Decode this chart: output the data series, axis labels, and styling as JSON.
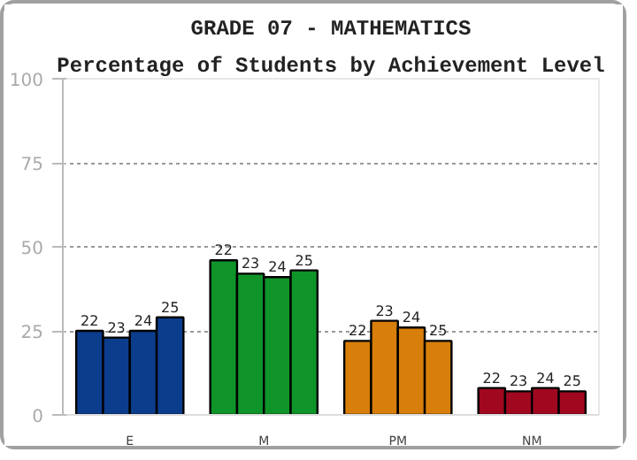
{
  "chart_data": {
    "type": "bar",
    "title": "GRADE 07 - MATHEMATICS",
    "subtitle": "Percentage of Students by Achievement Level",
    "categories": [
      "E",
      "M",
      "PM",
      "NM"
    ],
    "series": [
      {
        "name": "22",
        "colors": [
          "#0b3d8c",
          "#0e9428",
          "#d87e0a",
          "#a1081f"
        ],
        "values": [
          25,
          46,
          22,
          8
        ]
      },
      {
        "name": "23",
        "colors": [
          "#0b3d8c",
          "#0e9428",
          "#d87e0a",
          "#a1081f"
        ],
        "values": [
          23,
          42,
          28,
          7
        ]
      },
      {
        "name": "24",
        "colors": [
          "#0b3d8c",
          "#0e9428",
          "#d87e0a",
          "#a1081f"
        ],
        "values": [
          25,
          41,
          26,
          8
        ]
      },
      {
        "name": "25",
        "colors": [
          "#0b3d8c",
          "#0e9428",
          "#d87e0a",
          "#a1081f"
        ],
        "values": [
          29,
          43,
          22,
          7
        ]
      }
    ],
    "ylim": [
      0,
      100
    ],
    "yticks": [
      0,
      25,
      50,
      75,
      100
    ],
    "grid": "y"
  }
}
